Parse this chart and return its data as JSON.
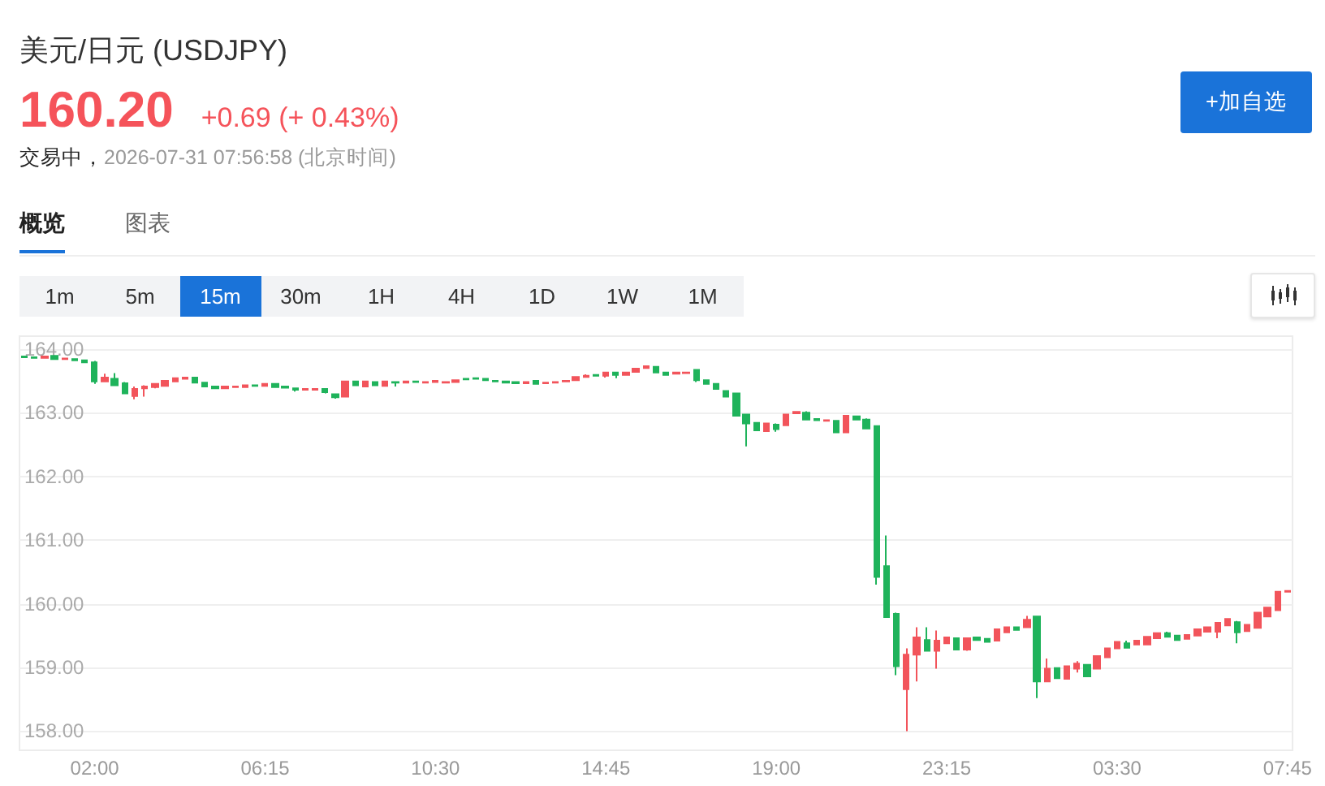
{
  "chart_data": {
    "type": "candlestick",
    "title": "美元/日元 (USDJPY)",
    "annotations": [
      "160.20",
      "+0.69 (+ 0.43%)",
      "交易中，",
      "2026-07-31 07:56:58 (北京时间)",
      "+加自选",
      "概览",
      "图表",
      "1m",
      "5m",
      "15m",
      "30m",
      "1H",
      "4H",
      "1D",
      "1W",
      "1M"
    ],
    "categories": [
      null,
      null,
      null,
      null,
      null,
      null,
      null,
      "02:00",
      null,
      null,
      null,
      null,
      null,
      null,
      null,
      null,
      null,
      null,
      null,
      null,
      null,
      null,
      null,
      null,
      "06:15",
      null,
      null,
      null,
      null,
      null,
      null,
      null,
      null,
      null,
      null,
      null,
      null,
      null,
      null,
      null,
      null,
      "10:30",
      null,
      null,
      null,
      null,
      null,
      null,
      null,
      null,
      null,
      null,
      null,
      null,
      null,
      null,
      null,
      null,
      "14:45",
      null,
      null,
      null,
      null,
      null,
      null,
      null,
      null,
      null,
      null,
      null,
      null,
      null,
      null,
      null,
      null,
      "19:00",
      null,
      null,
      null,
      null,
      null,
      null,
      null,
      null,
      null,
      null,
      null,
      null,
      null,
      null,
      null,
      null,
      "23:15",
      null,
      null,
      null,
      null,
      null,
      null,
      null,
      null,
      null,
      null,
      null,
      null,
      null,
      null,
      null,
      null,
      "03:30",
      null,
      null,
      null,
      null,
      null,
      null,
      null,
      null,
      null,
      null,
      null,
      null,
      null,
      null,
      null,
      null,
      "07:45"
    ],
    "ohlc": [
      [
        163.88,
        163.89,
        163.86,
        163.87
      ],
      [
        163.87,
        163.88,
        163.86,
        163.86
      ],
      [
        163.86,
        163.89,
        163.85,
        163.88
      ],
      [
        163.89,
        163.9,
        163.83,
        163.84
      ],
      [
        163.84,
        163.86,
        163.83,
        163.85
      ],
      [
        163.84,
        163.84,
        163.81,
        163.82
      ],
      [
        163.82,
        163.83,
        163.78,
        163.79
      ],
      [
        163.79,
        163.81,
        163.45,
        163.49
      ],
      [
        163.49,
        163.61,
        163.48,
        163.55
      ],
      [
        163.53,
        163.62,
        163.42,
        163.43
      ],
      [
        163.46,
        163.48,
        163.29,
        163.3
      ],
      [
        163.26,
        163.41,
        163.21,
        163.37
      ],
      [
        163.38,
        163.43,
        163.25,
        163.41
      ],
      [
        163.4,
        163.46,
        163.38,
        163.45
      ],
      [
        163.42,
        163.51,
        163.41,
        163.5
      ],
      [
        163.49,
        163.55,
        163.48,
        163.54
      ],
      [
        163.53,
        163.56,
        163.52,
        163.55
      ],
      [
        163.55,
        163.56,
        163.46,
        163.47
      ],
      [
        163.47,
        163.48,
        163.4,
        163.41
      ],
      [
        163.41,
        163.42,
        163.37,
        163.38
      ],
      [
        163.38,
        163.42,
        163.37,
        163.41
      ],
      [
        163.4,
        163.42,
        163.39,
        163.41
      ],
      [
        163.4,
        163.44,
        163.39,
        163.43
      ],
      [
        163.43,
        163.44,
        163.41,
        163.42
      ],
      [
        163.42,
        163.46,
        163.41,
        163.45
      ],
      [
        163.45,
        163.46,
        163.39,
        163.4
      ],
      [
        163.41,
        163.42,
        163.38,
        163.39
      ],
      [
        163.38,
        163.39,
        163.33,
        163.36
      ],
      [
        163.36,
        163.38,
        163.35,
        163.37
      ],
      [
        163.36,
        163.38,
        163.35,
        163.37
      ],
      [
        163.37,
        163.38,
        163.3,
        163.32
      ],
      [
        163.29,
        163.3,
        163.22,
        163.24
      ],
      [
        163.25,
        163.5,
        163.24,
        163.49
      ],
      [
        163.49,
        163.5,
        163.42,
        163.43
      ],
      [
        163.41,
        163.5,
        163.4,
        163.49
      ],
      [
        163.48,
        163.49,
        163.42,
        163.43
      ],
      [
        163.42,
        163.5,
        163.41,
        163.49
      ],
      [
        163.48,
        163.49,
        163.41,
        163.47
      ],
      [
        163.47,
        163.5,
        163.46,
        163.49
      ],
      [
        163.49,
        163.5,
        163.47,
        163.48
      ],
      [
        163.47,
        163.49,
        163.46,
        163.48
      ],
      [
        163.48,
        163.51,
        163.47,
        163.5
      ],
      [
        163.47,
        163.49,
        163.46,
        163.48
      ],
      [
        163.48,
        163.52,
        163.47,
        163.51
      ],
      [
        163.53,
        163.54,
        163.51,
        163.52
      ],
      [
        163.54,
        163.55,
        163.52,
        163.53
      ],
      [
        163.53,
        163.54,
        163.5,
        163.51
      ],
      [
        163.5,
        163.51,
        163.48,
        163.49
      ],
      [
        163.49,
        163.5,
        163.46,
        163.47
      ],
      [
        163.48,
        163.49,
        163.45,
        163.46
      ],
      [
        163.46,
        163.49,
        163.45,
        163.48
      ],
      [
        163.5,
        163.51,
        163.45,
        163.45
      ],
      [
        163.46,
        163.48,
        163.45,
        163.47
      ],
      [
        163.47,
        163.49,
        163.46,
        163.48
      ],
      [
        163.49,
        163.51,
        163.48,
        163.5
      ],
      [
        163.51,
        163.57,
        163.5,
        163.56
      ],
      [
        163.56,
        163.6,
        163.55,
        163.58
      ],
      [
        163.59,
        163.6,
        163.57,
        163.58
      ],
      [
        163.58,
        163.64,
        163.55,
        163.63
      ],
      [
        163.63,
        163.64,
        163.54,
        163.59
      ],
      [
        163.59,
        163.64,
        163.58,
        163.63
      ],
      [
        163.64,
        163.7,
        163.63,
        163.69
      ],
      [
        163.7,
        163.74,
        163.69,
        163.73
      ],
      [
        163.72,
        163.73,
        163.62,
        163.63
      ],
      [
        163.63,
        163.64,
        163.58,
        163.59
      ],
      [
        163.61,
        163.64,
        163.6,
        163.63
      ],
      [
        163.62,
        163.64,
        163.61,
        163.63
      ],
      [
        163.67,
        163.68,
        163.48,
        163.51
      ],
      [
        163.51,
        163.52,
        163.44,
        163.45
      ],
      [
        163.45,
        163.46,
        163.36,
        163.37
      ],
      [
        163.34,
        163.35,
        163.24,
        163.25
      ],
      [
        163.3,
        163.31,
        162.94,
        162.95
      ],
      [
        162.97,
        162.98,
        162.47,
        162.83
      ],
      [
        162.84,
        162.85,
        162.71,
        162.72
      ],
      [
        162.71,
        162.84,
        162.7,
        162.83
      ],
      [
        162.81,
        162.83,
        162.7,
        162.74
      ],
      [
        162.8,
        162.98,
        162.79,
        162.97
      ],
      [
        162.99,
        163.02,
        162.98,
        163.01
      ],
      [
        163.0,
        163.02,
        162.88,
        162.89
      ],
      [
        162.9,
        162.91,
        162.87,
        162.88
      ],
      [
        162.87,
        162.89,
        162.86,
        162.88
      ],
      [
        162.87,
        162.88,
        162.68,
        162.69
      ],
      [
        162.69,
        162.96,
        162.68,
        162.95
      ],
      [
        162.94,
        162.95,
        162.88,
        162.89
      ],
      [
        162.89,
        162.91,
        162.74,
        162.75
      ],
      [
        162.79,
        162.8,
        160.3,
        160.42
      ],
      [
        160.59,
        161.07,
        159.78,
        159.79
      ],
      [
        159.84,
        159.86,
        158.88,
        159.02
      ],
      [
        158.66,
        159.3,
        158.0,
        159.2
      ],
      [
        159.2,
        159.63,
        158.78,
        159.47
      ],
      [
        159.43,
        159.63,
        159.25,
        159.26
      ],
      [
        159.26,
        159.58,
        158.98,
        159.42
      ],
      [
        159.38,
        159.48,
        159.37,
        159.47
      ],
      [
        159.46,
        159.47,
        159.27,
        159.28
      ],
      [
        159.28,
        159.47,
        159.26,
        159.46
      ],
      [
        159.47,
        159.48,
        159.42,
        159.43
      ],
      [
        159.45,
        159.46,
        159.39,
        159.4
      ],
      [
        159.42,
        159.61,
        159.41,
        159.6
      ],
      [
        159.55,
        159.64,
        159.54,
        159.63
      ],
      [
        159.63,
        159.64,
        159.58,
        159.59
      ],
      [
        159.63,
        159.81,
        159.62,
        159.75
      ],
      [
        159.8,
        159.81,
        158.52,
        158.78
      ],
      [
        158.78,
        159.14,
        158.77,
        158.98
      ],
      [
        158.99,
        159.0,
        158.82,
        158.83
      ],
      [
        158.82,
        159.03,
        158.81,
        159.02
      ],
      [
        158.98,
        159.1,
        158.92,
        159.06
      ],
      [
        159.04,
        159.05,
        158.85,
        158.86
      ],
      [
        158.98,
        159.19,
        158.97,
        159.18
      ],
      [
        159.16,
        159.31,
        159.15,
        159.3
      ],
      [
        159.3,
        159.41,
        159.29,
        159.4
      ],
      [
        159.38,
        159.42,
        159.3,
        159.31
      ],
      [
        159.36,
        159.43,
        159.35,
        159.42
      ],
      [
        159.36,
        159.49,
        159.35,
        159.48
      ],
      [
        159.46,
        159.55,
        159.45,
        159.54
      ],
      [
        159.54,
        159.56,
        159.47,
        159.48
      ],
      [
        159.5,
        159.51,
        159.42,
        159.43
      ],
      [
        159.45,
        159.52,
        159.44,
        159.51
      ],
      [
        159.5,
        159.61,
        159.49,
        159.6
      ],
      [
        159.56,
        159.64,
        159.55,
        159.63
      ],
      [
        159.56,
        159.71,
        159.46,
        159.7
      ],
      [
        159.66,
        159.77,
        159.65,
        159.76
      ],
      [
        159.71,
        159.73,
        159.38,
        159.55
      ],
      [
        159.57,
        159.68,
        159.56,
        159.67
      ],
      [
        159.62,
        159.87,
        159.61,
        159.86
      ],
      [
        159.8,
        159.95,
        159.79,
        159.94
      ],
      [
        159.9,
        160.2,
        159.89,
        160.19
      ],
      [
        160.19,
        160.21,
        160.18,
        160.2
      ]
    ],
    "colors": [
      "#1fb35b",
      "#1fb35b",
      "#f2545b",
      "#1fb35b",
      "#f2545b",
      "#1fb35b",
      "#1fb35b",
      "#1fb35b",
      "#f2545b",
      "#1fb35b",
      "#1fb35b",
      "#f2545b",
      "#f2545b",
      "#f2545b",
      "#f2545b",
      "#f2545b",
      "#f2545b",
      "#1fb35b",
      "#1fb35b",
      "#1fb35b",
      "#f2545b",
      "#f2545b",
      "#f2545b",
      "#1fb35b",
      "#f2545b",
      "#1fb35b",
      "#1fb35b",
      "#1fb35b",
      "#f2545b",
      "#f2545b",
      "#1fb35b",
      "#1fb35b",
      "#f2545b",
      "#1fb35b",
      "#f2545b",
      "#1fb35b",
      "#f2545b",
      "#1fb35b",
      "#f2545b",
      "#1fb35b",
      "#f2545b",
      "#f2545b",
      "#f2545b",
      "#f2545b",
      "#1fb35b",
      "#1fb35b",
      "#1fb35b",
      "#1fb35b",
      "#1fb35b",
      "#1fb35b",
      "#f2545b",
      "#1fb35b",
      "#f2545b",
      "#f2545b",
      "#f2545b",
      "#f2545b",
      "#f2545b",
      "#1fb35b",
      "#f2545b",
      "#1fb35b",
      "#f2545b",
      "#f2545b",
      "#f2545b",
      "#1fb35b",
      "#1fb35b",
      "#f2545b",
      "#f2545b",
      "#1fb35b",
      "#1fb35b",
      "#1fb35b",
      "#1fb35b",
      "#1fb35b",
      "#1fb35b",
      "#1fb35b",
      "#f2545b",
      "#1fb35b",
      "#f2545b",
      "#f2545b",
      "#1fb35b",
      "#1fb35b",
      "#f2545b",
      "#1fb35b",
      "#f2545b",
      "#1fb35b",
      "#1fb35b",
      "#1fb35b",
      "#1fb35b",
      "#1fb35b",
      "#f2545b",
      "#f2545b",
      "#1fb35b",
      "#f2545b",
      "#f2545b",
      "#1fb35b",
      "#f2545b",
      "#1fb35b",
      "#1fb35b",
      "#f2545b",
      "#f2545b",
      "#1fb35b",
      "#f2545b",
      "#1fb35b",
      "#f2545b",
      "#1fb35b",
      "#f2545b",
      "#f2545b",
      "#1fb35b",
      "#f2545b",
      "#f2545b",
      "#f2545b",
      "#1fb35b",
      "#f2545b",
      "#f2545b",
      "#f2545b",
      "#1fb35b",
      "#1fb35b",
      "#f2545b",
      "#f2545b",
      "#f2545b",
      "#f2545b",
      "#f2545b",
      "#1fb35b",
      "#f2545b",
      "#f2545b",
      "#f2545b",
      "#f2545b",
      "#f2545b"
    ],
    "ylim": [
      157.7,
      164.2
    ],
    "yticks": [
      {
        "value": 158,
        "label": "158.00"
      },
      {
        "value": 159,
        "label": "159.00"
      },
      {
        "value": 160,
        "label": "160.00"
      },
      {
        "value": 161,
        "label": "161.00"
      },
      {
        "value": 162,
        "label": "162.00"
      },
      {
        "value": 163,
        "label": "163.00"
      },
      {
        "value": 164,
        "label": "164.00"
      }
    ],
    "grid": "y"
  }
}
